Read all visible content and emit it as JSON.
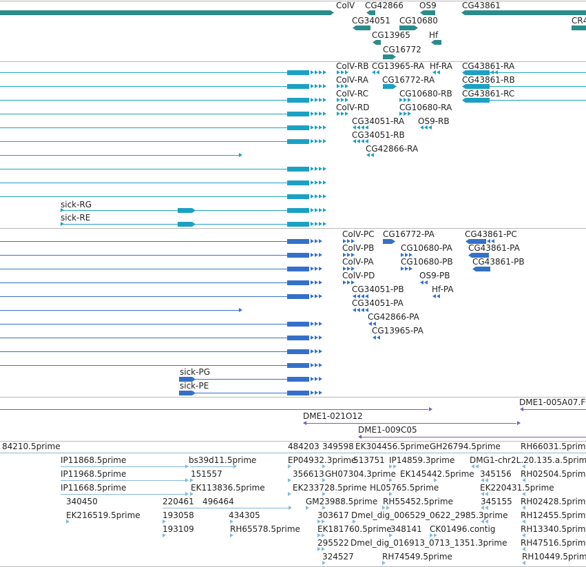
{
  "colors": {
    "gene": "#2a8c8c",
    "transcript_r": "#1ba1c4",
    "transcript_p": "#3470c9",
    "clone": "#7d5ab3",
    "est": "#86b9dc",
    "separator": "#b8b8b8"
  },
  "gene_track": {
    "labels": [
      "ColV",
      "CG42866",
      "OS9",
      "CG43861",
      "CG34051",
      "CG10680",
      "CR4",
      "CG13965",
      "Hf",
      "CG16772"
    ]
  },
  "transcript_track_r": {
    "labels": [
      "ColV-RB",
      "CG13965-RA",
      "Hf-RA",
      "CG43861-RA",
      "ColV-RA",
      "CG16772-RA",
      "CG43861-RB",
      "ColV-RC",
      "CG10680-RB",
      "CG43861-RC",
      "ColV-RD",
      "CG10680-RA",
      "CG34051-RA",
      "OS9-RB",
      "CG34051-RB",
      "CG42866-RA",
      "sick-RG",
      "sick-RE"
    ]
  },
  "transcript_track_p": {
    "labels": [
      "ColV-PC",
      "CG16772-PA",
      "CG43861-PC",
      "ColV-PB",
      "CG10680-PA",
      "CG43861-PA",
      "ColV-PA",
      "CG10680-PB",
      "CG43861-PB",
      "ColV-PD",
      "OS9-PB",
      "CG34051-PB",
      "Hf-PA",
      "CG34051-PA",
      "CG42866-PA",
      "CG13965-PA",
      "sick-PG",
      "sick-PE"
    ]
  },
  "clone_track": {
    "labels": [
      "DME1-005A07.F",
      "DME1-021O12",
      "DME1-009C05"
    ]
  },
  "est_track": {
    "labels": [
      "84210.5prime",
      "484203",
      "349598",
      "EK304456.5prime",
      "GH26794.5prime",
      "RH66031.5prime",
      "IP11868.5prime",
      "bs39d11.5prime",
      "EP04932.3prime",
      "513751",
      "IP14859.3prime",
      "DMG1-chr2L.20.135.a.5prime",
      "IP11968.5prime",
      "151557",
      "356613",
      "GH07304.3prime",
      "EK145442.5prime",
      "345156",
      "RH02504.5prime",
      "IP11668.5prime",
      "EK113836.5prime",
      "EK233728.5prime",
      "HL05765.5prime",
      "EK220431.5prime",
      "340450",
      "220461",
      "496464",
      "GM23988.5prime",
      "RH55452.5prime",
      "345155",
      "RH02428.5prime",
      "EK216519.5prime",
      "193058",
      "434305",
      "303617",
      "Dmel_dig_006529_0622_2985.3prime",
      "RH12455.5prime",
      "193109",
      "RH65578.5prime",
      "EK1817",
      "60.5prime",
      "348141",
      "CK01496.contig",
      "RH13340.5prime",
      "295522",
      "Dmel_dig_016913_0713_1351.3prime",
      "RH47516.5prime",
      "324527",
      "RH74549.5prime",
      "RH10449.5prime"
    ]
  }
}
